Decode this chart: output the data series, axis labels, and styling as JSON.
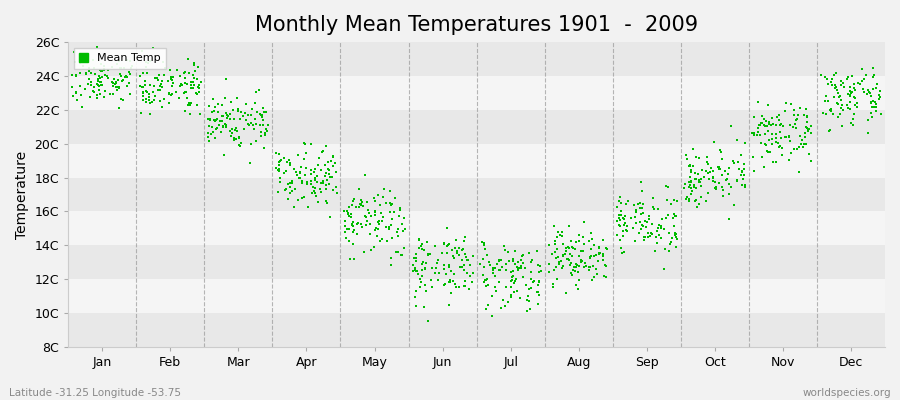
{
  "title": "Monthly Mean Temperatures 1901  -  2009",
  "ylabel": "Temperature",
  "xlabel_labels": [
    "Jan",
    "Feb",
    "Mar",
    "Apr",
    "May",
    "Jun",
    "Jul",
    "Aug",
    "Sep",
    "Oct",
    "Nov",
    "Dec"
  ],
  "ytick_labels": [
    "8C",
    "10C",
    "12C",
    "14C",
    "16C",
    "18C",
    "20C",
    "22C",
    "24C",
    "26C"
  ],
  "ytick_values": [
    8,
    10,
    12,
    14,
    16,
    18,
    20,
    22,
    24,
    26
  ],
  "ylim": [
    8,
    26
  ],
  "marker_color": "#00bb00",
  "marker": "s",
  "marker_size": 3,
  "legend_label": "Mean Temp",
  "footnote_left": "Latitude -31.25 Longitude -53.75",
  "footnote_right": "worldspecies.org",
  "bg_color": "#f2f2f2",
  "band_colors": [
    "#e8e8e8",
    "#f5f5f5"
  ],
  "grid_color": "#999999",
  "title_fontsize": 15,
  "axis_fontsize": 9,
  "years": 109,
  "monthly_means": [
    23.8,
    23.5,
    21.3,
    18.2,
    15.3,
    12.8,
    12.3,
    13.3,
    15.3,
    18.1,
    20.5,
    22.7
  ],
  "monthly_stds": [
    0.7,
    0.75,
    0.85,
    0.85,
    1.1,
    1.0,
    1.0,
    0.9,
    0.85,
    0.85,
    0.85,
    0.8
  ]
}
